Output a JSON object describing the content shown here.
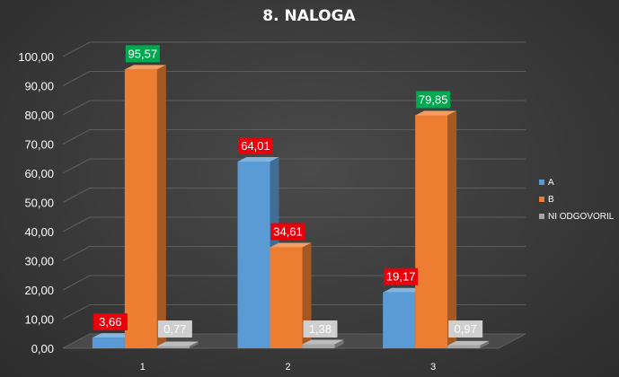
{
  "chart_data": {
    "type": "bar",
    "title": "8. NALOGA",
    "categories": [
      "1",
      "2",
      "3"
    ],
    "series": [
      {
        "name": "A",
        "values": [
          3.66,
          64.01,
          19.17
        ],
        "labels": [
          "3,66",
          "64,01",
          "19,17"
        ],
        "label_color": "#e8000b"
      },
      {
        "name": "B",
        "values": [
          95.57,
          34.61,
          79.85
        ],
        "labels": [
          "95,57",
          "34,61",
          "79,85"
        ],
        "label_colors": [
          "#00a94f",
          "#e8000b",
          "#00a94f"
        ]
      },
      {
        "name": "NI ODGOVORIL",
        "values": [
          0.77,
          1.38,
          0.97
        ],
        "labels": [
          "0,77",
          "1,38",
          "0,97"
        ],
        "label_color": "#cfcfcf"
      }
    ],
    "ylim": [
      0,
      100
    ],
    "yticks": [
      "0,00",
      "10,00",
      "20,00",
      "30,00",
      "40,00",
      "50,00",
      "60,00",
      "70,00",
      "80,00",
      "90,00",
      "100,00"
    ],
    "legend_position": "right",
    "grid": true,
    "colors": {
      "A": "#5b9bd5",
      "B": "#ed7d31",
      "NI ODGOVORIL": "#a5a5a5"
    }
  }
}
